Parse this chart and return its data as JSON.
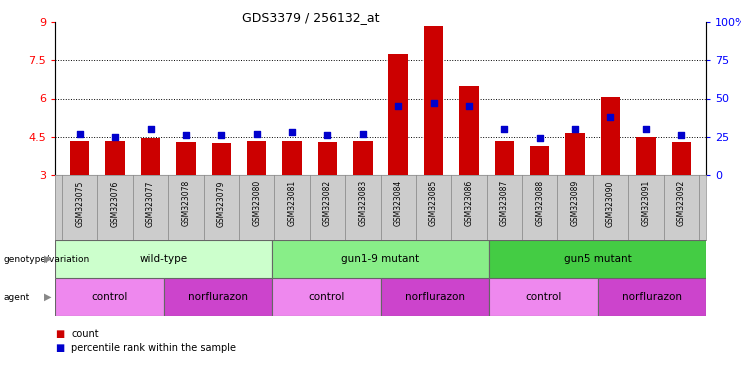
{
  "title": "GDS3379 / 256132_at",
  "samples": [
    "GSM323075",
    "GSM323076",
    "GSM323077",
    "GSM323078",
    "GSM323079",
    "GSM323080",
    "GSM323081",
    "GSM323082",
    "GSM323083",
    "GSM323084",
    "GSM323085",
    "GSM323086",
    "GSM323087",
    "GSM323088",
    "GSM323089",
    "GSM323090",
    "GSM323091",
    "GSM323092"
  ],
  "counts": [
    4.35,
    4.35,
    4.45,
    4.3,
    4.25,
    4.35,
    4.35,
    4.3,
    4.35,
    7.75,
    8.85,
    6.5,
    4.35,
    4.15,
    4.65,
    6.05,
    4.5,
    4.3
  ],
  "percentiles": [
    27,
    25,
    30,
    26,
    26,
    27,
    28,
    26,
    27,
    45,
    47,
    45,
    30,
    24,
    30,
    38,
    30,
    26
  ],
  "y_min": 3.0,
  "y_max": 9.0,
  "y_ticks_red": [
    3,
    4.5,
    6,
    7.5,
    9
  ],
  "y_ticks_blue": [
    0,
    25,
    50,
    75,
    100
  ],
  "bar_color": "#cc0000",
  "dot_color": "#0000cc",
  "genotype_groups": [
    {
      "label": "wild-type",
      "start": 0,
      "end": 6,
      "color": "#ccffcc"
    },
    {
      "label": "gun1-9 mutant",
      "start": 6,
      "end": 12,
      "color": "#88ee88"
    },
    {
      "label": "gun5 mutant",
      "start": 12,
      "end": 18,
      "color": "#44cc44"
    }
  ],
  "agent_groups": [
    {
      "label": "control",
      "start": 0,
      "end": 3,
      "color": "#ee88ee"
    },
    {
      "label": "norflurazon",
      "start": 3,
      "end": 6,
      "color": "#cc44cc"
    },
    {
      "label": "control",
      "start": 6,
      "end": 9,
      "color": "#ee88ee"
    },
    {
      "label": "norflurazon",
      "start": 9,
      "end": 12,
      "color": "#cc44cc"
    },
    {
      "label": "control",
      "start": 12,
      "end": 15,
      "color": "#ee88ee"
    },
    {
      "label": "norflurazon",
      "start": 15,
      "end": 18,
      "color": "#cc44cc"
    }
  ],
  "sample_bg": "#cccccc",
  "legend_count_color": "#cc0000",
  "legend_pct_color": "#0000cc"
}
